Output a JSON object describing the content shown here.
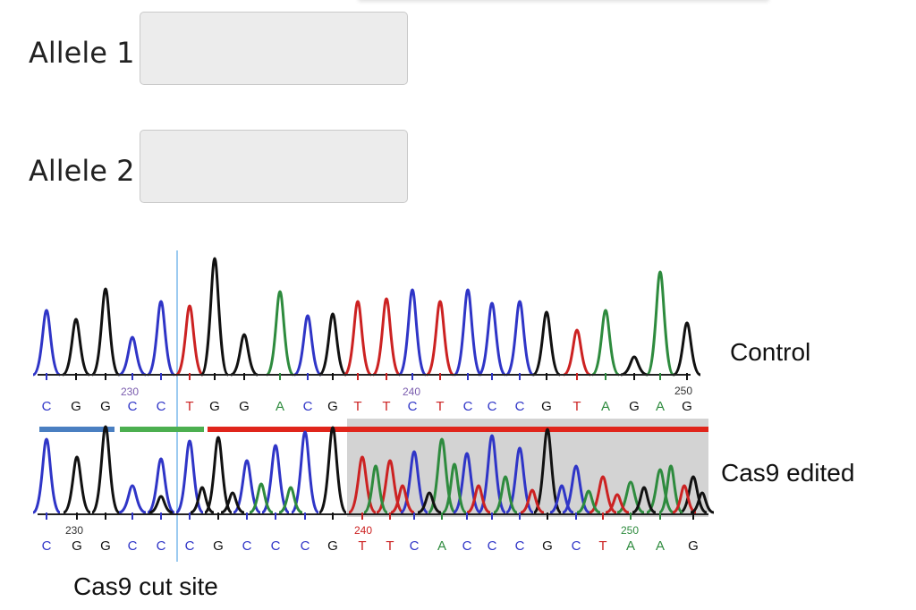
{
  "form": {
    "allele1_label": "Allele 1",
    "allele2_label": "Allele 2",
    "allele1_value": "",
    "allele2_value": ""
  },
  "figure": {
    "control_label": "Control",
    "edited_label": "Cas9 edited",
    "cut_site_label": "Cas9 cut site",
    "control_positions": [
      "230",
      "240",
      "250"
    ],
    "edited_positions": [
      "230",
      "240",
      "250"
    ],
    "control_bases": [
      "C",
      "G",
      "G",
      "C",
      "C",
      "T",
      "G",
      "G",
      "A",
      "C",
      "G",
      "T",
      "T",
      "C",
      "T",
      "C",
      "C",
      "C",
      "G",
      "T",
      "A",
      "G",
      "A",
      "G"
    ],
    "edited_bases": [
      "C",
      "G",
      "G",
      "C",
      "C",
      "C",
      "G",
      "C",
      "C",
      "C",
      "G",
      "T",
      "T",
      "C",
      "A",
      "C",
      "C",
      "C",
      "G",
      "C",
      "T",
      "A",
      "A",
      "G"
    ],
    "base_colors": {
      "A": "#2e8b3e",
      "C": "#2f35c7",
      "G": "#111111",
      "T": "#cc2222"
    }
  }
}
